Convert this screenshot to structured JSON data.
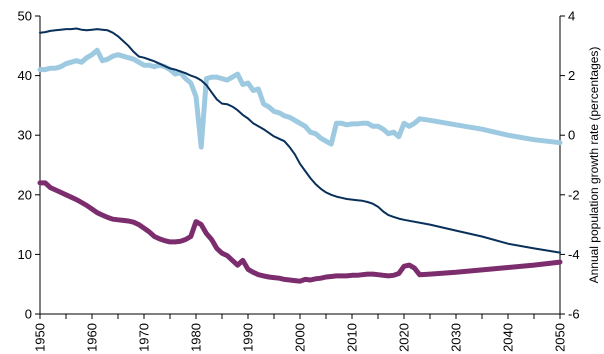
{
  "chart_data": {
    "type": "line",
    "title": "",
    "xlabel": "",
    "ylabel_left": "",
    "ylabel_right": "Annual population growth rate (percentages)",
    "xlim": [
      1950,
      2050
    ],
    "ylim_left": [
      0,
      50
    ],
    "ylim_right": [
      -6,
      4
    ],
    "x_ticks": [
      1950,
      1960,
      1970,
      1980,
      1990,
      2000,
      2010,
      2020,
      2030,
      2040,
      2050
    ],
    "y_left_ticks": [
      0,
      10,
      20,
      30,
      40,
      50
    ],
    "y_right_ticks": [
      -6,
      -4,
      -2,
      0,
      2,
      4
    ],
    "grid": false,
    "series": [
      {
        "axis": "right",
        "color": "#9ecae1",
        "points": [
          [
            1950,
            2.2
          ],
          [
            1951,
            2.2
          ],
          [
            1952,
            2.25
          ],
          [
            1953,
            2.25
          ],
          [
            1954,
            2.3
          ],
          [
            1955,
            2.4
          ],
          [
            1956,
            2.45
          ],
          [
            1957,
            2.5
          ],
          [
            1958,
            2.45
          ],
          [
            1959,
            2.6
          ],
          [
            1960,
            2.7
          ],
          [
            1961,
            2.85
          ],
          [
            1962,
            2.5
          ],
          [
            1963,
            2.55
          ],
          [
            1964,
            2.65
          ],
          [
            1965,
            2.7
          ],
          [
            1966,
            2.65
          ],
          [
            1967,
            2.6
          ],
          [
            1968,
            2.55
          ],
          [
            1969,
            2.45
          ],
          [
            1970,
            2.35
          ],
          [
            1971,
            2.35
          ],
          [
            1972,
            2.3
          ],
          [
            1973,
            2.35
          ],
          [
            1974,
            2.3
          ],
          [
            1975,
            2.2
          ],
          [
            1976,
            2.05
          ],
          [
            1977,
            2.1
          ],
          [
            1978,
            1.9
          ],
          [
            1979,
            1.75
          ],
          [
            1980,
            1.3
          ],
          [
            1981,
            -0.4
          ],
          [
            1982,
            1.9
          ],
          [
            1983,
            1.95
          ],
          [
            1984,
            1.95
          ],
          [
            1985,
            1.9
          ],
          [
            1986,
            1.85
          ],
          [
            1987,
            1.95
          ],
          [
            1988,
            2.05
          ],
          [
            1989,
            1.7
          ],
          [
            1990,
            1.75
          ],
          [
            1991,
            1.5
          ],
          [
            1992,
            1.55
          ],
          [
            1993,
            1.05
          ],
          [
            1994,
            0.95
          ],
          [
            1995,
            0.8
          ],
          [
            1996,
            0.75
          ],
          [
            1997,
            0.65
          ],
          [
            1998,
            0.6
          ],
          [
            1999,
            0.5
          ],
          [
            2000,
            0.4
          ],
          [
            2001,
            0.3
          ],
          [
            2002,
            0.1
          ],
          [
            2003,
            0.05
          ],
          [
            2004,
            -0.1
          ],
          [
            2005,
            -0.2
          ],
          [
            2006,
            -0.3
          ],
          [
            2007,
            0.4
          ],
          [
            2008,
            0.4
          ],
          [
            2009,
            0.35
          ],
          [
            2010,
            0.38
          ],
          [
            2011,
            0.38
          ],
          [
            2012,
            0.4
          ],
          [
            2013,
            0.4
          ],
          [
            2014,
            0.3
          ],
          [
            2015,
            0.3
          ],
          [
            2016,
            0.2
          ],
          [
            2017,
            0.05
          ],
          [
            2018,
            0.1
          ],
          [
            2019,
            -0.05
          ],
          [
            2020,
            0.4
          ],
          [
            2021,
            0.3
          ],
          [
            2022,
            0.4
          ],
          [
            2023,
            0.55
          ],
          [
            2025,
            0.5
          ],
          [
            2030,
            0.35
          ],
          [
            2035,
            0.2
          ],
          [
            2040,
            0.0
          ],
          [
            2045,
            -0.15
          ],
          [
            2050,
            -0.25
          ]
        ]
      },
      {
        "axis": "left",
        "color": "#08305a",
        "points": [
          [
            1950,
            47.2
          ],
          [
            1951,
            47.3
          ],
          [
            1952,
            47.5
          ],
          [
            1953,
            47.6
          ],
          [
            1954,
            47.7
          ],
          [
            1955,
            47.8
          ],
          [
            1956,
            47.8
          ],
          [
            1957,
            47.9
          ],
          [
            1958,
            47.7
          ],
          [
            1959,
            47.6
          ],
          [
            1960,
            47.7
          ],
          [
            1961,
            47.8
          ],
          [
            1962,
            47.7
          ],
          [
            1963,
            47.6
          ],
          [
            1964,
            47.2
          ],
          [
            1965,
            46.6
          ],
          [
            1966,
            45.8
          ],
          [
            1967,
            45.0
          ],
          [
            1968,
            44.0
          ],
          [
            1969,
            43.2
          ],
          [
            1970,
            43.0
          ],
          [
            1971,
            42.7
          ],
          [
            1972,
            42.4
          ],
          [
            1973,
            42.0
          ],
          [
            1974,
            41.6
          ],
          [
            1975,
            41.2
          ],
          [
            1976,
            41.0
          ],
          [
            1977,
            40.7
          ],
          [
            1978,
            40.4
          ],
          [
            1979,
            40.0
          ],
          [
            1980,
            39.7
          ],
          [
            1981,
            39.2
          ],
          [
            1982,
            38.4
          ],
          [
            1983,
            37.2
          ],
          [
            1984,
            36.0
          ],
          [
            1985,
            35.3
          ],
          [
            1986,
            35.2
          ],
          [
            1987,
            34.8
          ],
          [
            1988,
            34.2
          ],
          [
            1989,
            33.4
          ],
          [
            1990,
            32.8
          ],
          [
            1991,
            32.0
          ],
          [
            1992,
            31.5
          ],
          [
            1993,
            31.0
          ],
          [
            1994,
            30.4
          ],
          [
            1995,
            29.8
          ],
          [
            1996,
            29.4
          ],
          [
            1997,
            29.0
          ],
          [
            1998,
            28.0
          ],
          [
            1999,
            26.8
          ],
          [
            2000,
            25.2
          ],
          [
            2001,
            24.0
          ],
          [
            2002,
            22.8
          ],
          [
            2003,
            21.8
          ],
          [
            2004,
            21.0
          ],
          [
            2005,
            20.4
          ],
          [
            2006,
            20.0
          ],
          [
            2007,
            19.7
          ],
          [
            2008,
            19.5
          ],
          [
            2009,
            19.3
          ],
          [
            2010,
            19.2
          ],
          [
            2011,
            19.1
          ],
          [
            2012,
            19.0
          ],
          [
            2013,
            18.8
          ],
          [
            2014,
            18.5
          ],
          [
            2015,
            18.0
          ],
          [
            2016,
            17.2
          ],
          [
            2017,
            16.6
          ],
          [
            2018,
            16.3
          ],
          [
            2019,
            16.0
          ],
          [
            2020,
            15.8
          ],
          [
            2025,
            15.0
          ],
          [
            2030,
            14.0
          ],
          [
            2035,
            13.0
          ],
          [
            2040,
            11.8
          ],
          [
            2045,
            11.0
          ],
          [
            2050,
            10.3
          ]
        ]
      },
      {
        "axis": "left",
        "color": "#7b2d6e",
        "points": [
          [
            1950,
            22.0
          ],
          [
            1951,
            22.0
          ],
          [
            1952,
            21.2
          ],
          [
            1953,
            20.8
          ],
          [
            1954,
            20.4
          ],
          [
            1955,
            20.0
          ],
          [
            1956,
            19.6
          ],
          [
            1957,
            19.2
          ],
          [
            1958,
            18.7
          ],
          [
            1959,
            18.2
          ],
          [
            1960,
            17.6
          ],
          [
            1961,
            17.0
          ],
          [
            1962,
            16.6
          ],
          [
            1963,
            16.2
          ],
          [
            1964,
            15.9
          ],
          [
            1965,
            15.8
          ],
          [
            1966,
            15.7
          ],
          [
            1967,
            15.6
          ],
          [
            1968,
            15.4
          ],
          [
            1969,
            15.0
          ],
          [
            1970,
            14.4
          ],
          [
            1971,
            13.8
          ],
          [
            1972,
            13.0
          ],
          [
            1973,
            12.6
          ],
          [
            1974,
            12.3
          ],
          [
            1975,
            12.1
          ],
          [
            1976,
            12.1
          ],
          [
            1977,
            12.2
          ],
          [
            1978,
            12.5
          ],
          [
            1979,
            13.0
          ],
          [
            1980,
            15.5
          ],
          [
            1981,
            15.0
          ],
          [
            1982,
            13.5
          ],
          [
            1983,
            12.5
          ],
          [
            1984,
            11.0
          ],
          [
            1985,
            10.2
          ],
          [
            1986,
            9.8
          ],
          [
            1987,
            9.0
          ],
          [
            1988,
            8.2
          ],
          [
            1989,
            9.0
          ],
          [
            1990,
            7.5
          ],
          [
            1991,
            7.0
          ],
          [
            1992,
            6.6
          ],
          [
            1993,
            6.4
          ],
          [
            1994,
            6.2
          ],
          [
            1995,
            6.1
          ],
          [
            1996,
            6.0
          ],
          [
            1997,
            5.8
          ],
          [
            1998,
            5.7
          ],
          [
            1999,
            5.6
          ],
          [
            2000,
            5.5
          ],
          [
            2001,
            5.8
          ],
          [
            2002,
            5.7
          ],
          [
            2003,
            5.9
          ],
          [
            2004,
            6.0
          ],
          [
            2005,
            6.2
          ],
          [
            2006,
            6.3
          ],
          [
            2007,
            6.4
          ],
          [
            2008,
            6.4
          ],
          [
            2009,
            6.4
          ],
          [
            2010,
            6.5
          ],
          [
            2011,
            6.5
          ],
          [
            2012,
            6.6
          ],
          [
            2013,
            6.7
          ],
          [
            2014,
            6.7
          ],
          [
            2015,
            6.6
          ],
          [
            2016,
            6.5
          ],
          [
            2017,
            6.4
          ],
          [
            2018,
            6.5
          ],
          [
            2019,
            6.8
          ],
          [
            2020,
            8.0
          ],
          [
            2021,
            8.2
          ],
          [
            2022,
            7.7
          ],
          [
            2023,
            6.6
          ],
          [
            2025,
            6.7
          ],
          [
            2030,
            7.0
          ],
          [
            2035,
            7.4
          ],
          [
            2040,
            7.8
          ],
          [
            2045,
            8.2
          ],
          [
            2050,
            8.7
          ]
        ]
      }
    ]
  }
}
